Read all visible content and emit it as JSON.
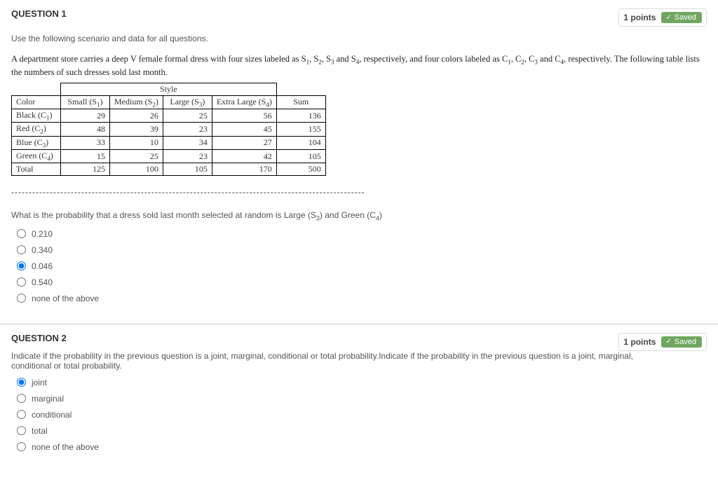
{
  "q1": {
    "title": "QUESTION 1",
    "points": "1 points",
    "saved": "Saved",
    "scenario_line": "Use the following scenario and data for all questions.",
    "detail_html": "A department store carries a deep V female formal dress with four sizes labeled as S<sub>1</sub>, S<sub>2</sub>, S<sub>3</sub> and S<sub>4</sub>, respectively, and four colors labeled as C<sub>1</sub>, C<sub>2</sub>, C<sub>3</sub> and C<sub>4</sub>, respectively. The following table lists the numbers of such dresses sold last month.",
    "table": {
      "style_header": "Style",
      "col_color": "Color",
      "cols": [
        "Small (S1)",
        "Medium (S2)",
        "Large (S3)",
        "Extra Large (S4)"
      ],
      "sum_label": "Sum",
      "rows": [
        {
          "label": "Black (C1)",
          "vals": [
            29,
            26,
            25,
            56
          ],
          "sum": 136
        },
        {
          "label": "Red (C2)",
          "vals": [
            48,
            39,
            23,
            45
          ],
          "sum": 155
        },
        {
          "label": "Blue (C3)",
          "vals": [
            33,
            10,
            34,
            27
          ],
          "sum": 104
        },
        {
          "label": "Green (C4)",
          "vals": [
            15,
            25,
            23,
            42
          ],
          "sum": 105
        }
      ],
      "total_label": "Total",
      "totals": [
        125,
        100,
        105,
        170
      ],
      "grand": 500
    },
    "dashes": "-----------------------------------------------------------------------------------------------------",
    "prompt_html": "What is the probability that a dress sold last month selected at random is Large (S<sub>3</sub>) and Green (C<sub>4</sub>)",
    "options": [
      "0.210",
      "0.340",
      "0.046",
      "0.540",
      "none of the above"
    ],
    "selected": 2
  },
  "q2": {
    "title": "QUESTION 2",
    "points": "1 points",
    "saved": "Saved",
    "prompt": "Indicate if the probability in the previous question is a joint, marginal, conditional or total probability.Indicate if the probability in the previous question is a joint, marginal, conditional or total probability.",
    "options": [
      "joint",
      "marginal",
      "conditional",
      "total",
      "none of the above"
    ],
    "selected": 0
  }
}
